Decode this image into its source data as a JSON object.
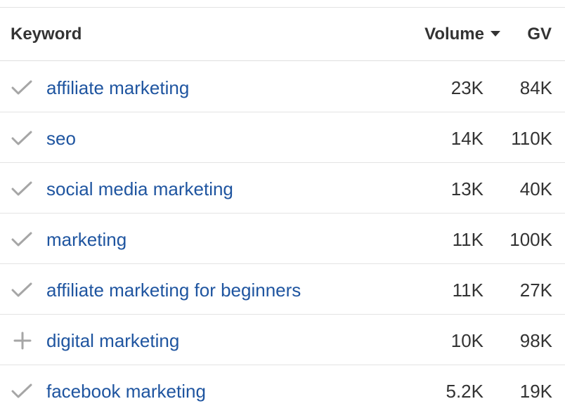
{
  "table": {
    "columns": {
      "keyword": "Keyword",
      "volume": "Volume",
      "gv": "GV"
    },
    "sort": {
      "column": "Volume",
      "direction": "descending",
      "icon": "caret-down-icon"
    },
    "rows": [
      {
        "status_icon": "check-icon",
        "keyword": "affiliate marketing",
        "volume": "23K",
        "gv": "84K"
      },
      {
        "status_icon": "check-icon",
        "keyword": "seo",
        "volume": "14K",
        "gv": "110K"
      },
      {
        "status_icon": "check-icon",
        "keyword": "social media marketing",
        "volume": "13K",
        "gv": "40K"
      },
      {
        "status_icon": "check-icon",
        "keyword": "marketing",
        "volume": "11K",
        "gv": "100K"
      },
      {
        "status_icon": "check-icon",
        "keyword": "affiliate marketing for beginners",
        "volume": "11K",
        "gv": "27K"
      },
      {
        "status_icon": "plus-icon",
        "keyword": "digital marketing",
        "volume": "10K",
        "gv": "98K"
      },
      {
        "status_icon": "check-icon",
        "keyword": "facebook marketing",
        "volume": "5.2K",
        "gv": "19K"
      }
    ]
  },
  "colors": {
    "link": "#1f55a0",
    "text": "#333333",
    "icon": "#a6a6a6",
    "divider": "#e3e3e3"
  }
}
